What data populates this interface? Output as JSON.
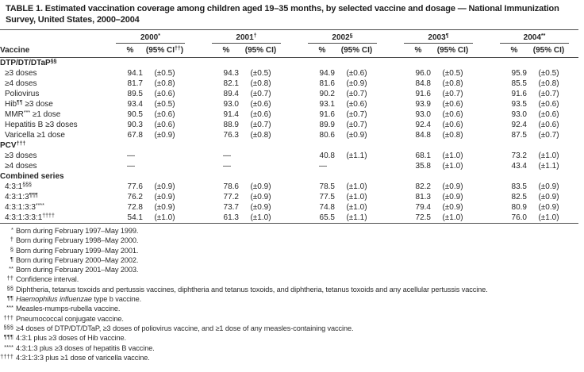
{
  "title": {
    "line1": "TABLE 1. Estimated vaccination coverage among children aged 19–35 months, by selected vaccine and dosage — National Immunization",
    "line2": "Survey, United States, 2000–2004"
  },
  "table": {
    "vaccine_header": "Vaccine",
    "year_groups": [
      {
        "year": "2000",
        "sup": "*",
        "pct": "%",
        "ci_pre": "(95% CI",
        "ci_sup": "††",
        "ci_post": ")"
      },
      {
        "year": "2001",
        "sup": "†",
        "pct": "%",
        "ci_pre": "(95% CI",
        "ci_sup": "",
        "ci_post": ")"
      },
      {
        "year": "2002",
        "sup": "§",
        "pct": "%",
        "ci_pre": "(95% CI",
        "ci_sup": "",
        "ci_post": ")"
      },
      {
        "year": "2003",
        "sup": "¶",
        "pct": "%",
        "ci_pre": "(95% CI",
        "ci_sup": "",
        "ci_post": ")"
      },
      {
        "year": "2004",
        "sup": "**",
        "pct": "%",
        "ci_pre": "(95% CI",
        "ci_sup": "",
        "ci_post": ")"
      }
    ],
    "rows": [
      {
        "type": "section",
        "pre": "DTP/DT/DTaP",
        "sup": "§§",
        "post": ""
      },
      {
        "type": "data",
        "pre": "≥3 doses",
        "sup": "",
        "post": "",
        "cells": [
          [
            "94.1",
            "(±0.5)"
          ],
          [
            "94.3",
            "(±0.5)"
          ],
          [
            "94.9",
            "(±0.6)"
          ],
          [
            "96.0",
            "(±0.5)"
          ],
          [
            "95.9",
            "(±0.5)"
          ]
        ]
      },
      {
        "type": "data",
        "pre": "≥4 doses",
        "sup": "",
        "post": "",
        "cells": [
          [
            "81.7",
            "(±0.8)"
          ],
          [
            "82.1",
            "(±0.8)"
          ],
          [
            "81.6",
            "(±0.9)"
          ],
          [
            "84.8",
            "(±0.8)"
          ],
          [
            "85.5",
            "(±0.8)"
          ]
        ]
      },
      {
        "type": "data",
        "pre": "Poliovirus",
        "sup": "",
        "post": "",
        "cells": [
          [
            "89.5",
            "(±0.6)"
          ],
          [
            "89.4",
            "(±0.7)"
          ],
          [
            "90.2",
            "(±0.7)"
          ],
          [
            "91.6",
            "(±0.7)"
          ],
          [
            "91.6",
            "(±0.7)"
          ]
        ]
      },
      {
        "type": "data",
        "pre": "Hib",
        "sup": "¶¶",
        "post": " ≥3 dose",
        "cells": [
          [
            "93.4",
            "(±0.5)"
          ],
          [
            "93.0",
            "(±0.6)"
          ],
          [
            "93.1",
            "(±0.6)"
          ],
          [
            "93.9",
            "(±0.6)"
          ],
          [
            "93.5",
            "(±0.6)"
          ]
        ]
      },
      {
        "type": "data",
        "pre": "MMR",
        "sup": "***",
        "post": " ≥1 dose",
        "cells": [
          [
            "90.5",
            "(±0.6)"
          ],
          [
            "91.4",
            "(±0.6)"
          ],
          [
            "91.6",
            "(±0.7)"
          ],
          [
            "93.0",
            "(±0.6)"
          ],
          [
            "93.0",
            "(±0.6)"
          ]
        ]
      },
      {
        "type": "data",
        "pre": "Hepatitis B ≥3 doses",
        "sup": "",
        "post": "",
        "cells": [
          [
            "90.3",
            "(±0.6)"
          ],
          [
            "88.9",
            "(±0.7)"
          ],
          [
            "89.9",
            "(±0.7)"
          ],
          [
            "92.4",
            "(±0.6)"
          ],
          [
            "92.4",
            "(±0.6)"
          ]
        ]
      },
      {
        "type": "data",
        "pre": "Varicella ≥1 dose",
        "sup": "",
        "post": "",
        "cells": [
          [
            "67.8",
            "(±0.9)"
          ],
          [
            "76.3",
            "(±0.8)"
          ],
          [
            "80.6",
            "(±0.9)"
          ],
          [
            "84.8",
            "(±0.8)"
          ],
          [
            "87.5",
            "(±0.7)"
          ]
        ]
      },
      {
        "type": "section",
        "pre": "PCV",
        "sup": "†††",
        "post": ""
      },
      {
        "type": "data",
        "pre": "≥3 doses",
        "sup": "",
        "post": "",
        "cells": [
          [
            "—",
            ""
          ],
          [
            "—",
            ""
          ],
          [
            "40.8",
            "(±1.1)"
          ],
          [
            "68.1",
            "(±1.0)"
          ],
          [
            "73.2",
            "(±1.0)"
          ]
        ]
      },
      {
        "type": "data",
        "pre": "≥4 doses",
        "sup": "",
        "post": "",
        "cells": [
          [
            "—",
            ""
          ],
          [
            "—",
            ""
          ],
          [
            "—",
            ""
          ],
          [
            "35.8",
            "(±1.0)"
          ],
          [
            "43.4",
            "(±1.1)"
          ]
        ]
      },
      {
        "type": "section",
        "pre": "Combined series",
        "sup": "",
        "post": ""
      },
      {
        "type": "data",
        "pre": "4:3:1",
        "sup": "§§§",
        "post": "",
        "cells": [
          [
            "77.6",
            "(±0.9)"
          ],
          [
            "78.6",
            "(±0.9)"
          ],
          [
            "78.5",
            "(±1.0)"
          ],
          [
            "82.2",
            "(±0.9)"
          ],
          [
            "83.5",
            "(±0.9)"
          ]
        ]
      },
      {
        "type": "data",
        "pre": "4:3:1:3",
        "sup": "¶¶¶",
        "post": "",
        "cells": [
          [
            "76.2",
            "(±0.9)"
          ],
          [
            "77.2",
            "(±0.9)"
          ],
          [
            "77.5",
            "(±1.0)"
          ],
          [
            "81.3",
            "(±0.9)"
          ],
          [
            "82.5",
            "(±0.9)"
          ]
        ]
      },
      {
        "type": "data",
        "pre": "4:3:1:3:3",
        "sup": "****",
        "post": "",
        "cells": [
          [
            "72.8",
            "(±0.9)"
          ],
          [
            "73.7",
            "(±0.9)"
          ],
          [
            "74.8",
            "(±1.0)"
          ],
          [
            "79.4",
            "(±0.9)"
          ],
          [
            "80.9",
            "(±0.9)"
          ]
        ]
      },
      {
        "type": "data",
        "pre": "4:3:1:3:3:1",
        "sup": "††††",
        "post": "",
        "cells": [
          [
            "54.1",
            "(±1.0)"
          ],
          [
            "61.3",
            "(±1.0)"
          ],
          [
            "65.5",
            "(±1.1)"
          ],
          [
            "72.5",
            "(±1.0)"
          ],
          [
            "76.0",
            "(±1.0)"
          ]
        ]
      }
    ]
  },
  "footnotes": [
    {
      "marker": "*",
      "pre": "Born during February 1997–May 1999.",
      "italic": "",
      "post": ""
    },
    {
      "marker": "†",
      "pre": "Born during February 1998–May 2000.",
      "italic": "",
      "post": ""
    },
    {
      "marker": "§",
      "pre": "Born during February 1999–May 2001.",
      "italic": "",
      "post": ""
    },
    {
      "marker": "¶",
      "pre": "Born during February 2000–May 2002.",
      "italic": "",
      "post": ""
    },
    {
      "marker": "**",
      "pre": "Born during February 2001–May 2003.",
      "italic": "",
      "post": ""
    },
    {
      "marker": "††",
      "pre": "Confidence interval.",
      "italic": "",
      "post": ""
    },
    {
      "marker": "§§",
      "pre": "Diphtheria, tetanus toxoids and pertussis vaccines, diphtheria and tetanus toxoids, and diphtheria, tetanus toxoids and any acellular pertussis vaccine.",
      "italic": "",
      "post": ""
    },
    {
      "marker": "¶¶",
      "pre": "",
      "italic": "Haemophilus influenzae",
      "post": " type b vaccine."
    },
    {
      "marker": "***",
      "pre": "Measles-mumps-rubella vaccine.",
      "italic": "",
      "post": ""
    },
    {
      "marker": "†††",
      "pre": "Pneumococcal conjugate vaccine.",
      "italic": "",
      "post": ""
    },
    {
      "marker": "§§§",
      "pre": "≥4 doses of DTP/DT/DTaP, ≥3 doses of poliovirus vaccine, and ≥1 dose of any measles-containing vaccine.",
      "italic": "",
      "post": ""
    },
    {
      "marker": "¶¶¶",
      "pre": "4:3:1 plus ≥3 doses of Hib vaccine.",
      "italic": "",
      "post": ""
    },
    {
      "marker": "****",
      "pre": "4:3:1:3 plus ≥3 doses of hepatitis B vaccine.",
      "italic": "",
      "post": ""
    },
    {
      "marker": "††††",
      "pre": "4:3:1:3:3 plus ≥1 dose of varicella vaccine.",
      "italic": "",
      "post": ""
    }
  ]
}
